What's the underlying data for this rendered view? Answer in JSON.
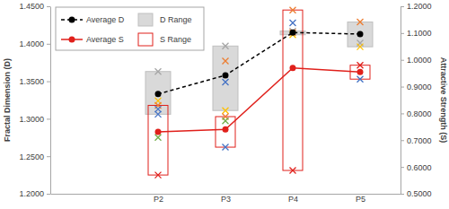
{
  "chart_data": {
    "type": "line",
    "categories": [
      null,
      "P2",
      "P3",
      "P4",
      "P5"
    ],
    "ylabel": "Fractal Dimension (D)",
    "y2label": "Attractive Strength (S)",
    "ylim": [
      1.2,
      1.45
    ],
    "yticks": [
      {
        "value": 1.2,
        "label": "1.2000"
      },
      {
        "value": 1.25,
        "label": "1.2500"
      },
      {
        "value": 1.3,
        "label": "1.3000"
      },
      {
        "value": 1.35,
        "label": "1.3500"
      },
      {
        "value": 1.4,
        "label": "1.4000"
      },
      {
        "value": 1.45,
        "label": "1.4500"
      }
    ],
    "y2lim": [
      0.5,
      1.2
    ],
    "y2ticks": [
      {
        "value": 0.5,
        "label": "0.5000"
      },
      {
        "value": 0.6,
        "label": "0.6000"
      },
      {
        "value": 0.7,
        "label": "0.7000"
      },
      {
        "value": 0.8,
        "label": "0.8000"
      },
      {
        "value": 0.9,
        "label": "0.9000"
      },
      {
        "value": 1.0,
        "label": "1.0000"
      },
      {
        "value": 1.1,
        "label": "1.1000"
      },
      {
        "value": 1.2,
        "label": "1.2000"
      }
    ],
    "grid": false,
    "legend": "top-left",
    "series": [
      {
        "name": "Average D",
        "type": "line",
        "color": "#000000",
        "line_style": "dashed",
        "marker": "circle",
        "values": [
          null,
          1.333,
          1.358,
          1.415,
          1.413
        ]
      },
      {
        "name": "D Range",
        "type": "band",
        "color": "#d9d9d9",
        "marker": "x",
        "points": [
          [],
          [
            1.363,
            1.324,
            1.306
          ],
          [
            1.397,
            1.377,
            1.349,
            1.311
          ],
          [
            1.417,
            1.415,
            1.412
          ],
          [
            1.429,
            1.401,
            1.396
          ]
        ],
        "colors": [
          [],
          [
            "#a5a5a5",
            "#ffc000",
            "#4472c4"
          ],
          [
            "#a5a5a5",
            "#ed7d31",
            "#4472c4",
            "#ffc000"
          ],
          [
            "#a5a5a5",
            "#ed7d31",
            "#ffc000"
          ],
          [
            "#ed7d31",
            "#a5a5a5",
            "#ffc000"
          ]
        ]
      },
      {
        "name": "Average S",
        "type": "line",
        "color": "#e0201b",
        "line_style": "solid",
        "marker": "circle",
        "axis": "y2",
        "values": [
          null,
          0.731,
          0.74,
          0.97,
          0.955
        ]
      },
      {
        "name": "S Range",
        "type": "box",
        "color": "#e0201b",
        "marker": "x",
        "axis": "y2",
        "points": [
          [],
          [
            0.83,
            0.816,
            0.71,
            0.57
          ],
          [
            0.788,
            0.772,
            0.674
          ],
          [
            1.186,
            1.138,
            0.587
          ],
          [
            0.98,
            0.928
          ]
        ],
        "colors": [
          [],
          [
            "#ed7d31",
            "#4472c4",
            "#70ad47",
            "#e0201b"
          ],
          [
            "#ed7d31",
            "#70ad47",
            "#4472c4"
          ],
          [
            "#ed7d31",
            "#4472c4",
            "#e0201b"
          ],
          [
            "#e0201b",
            "#4472c4"
          ]
        ]
      }
    ]
  }
}
